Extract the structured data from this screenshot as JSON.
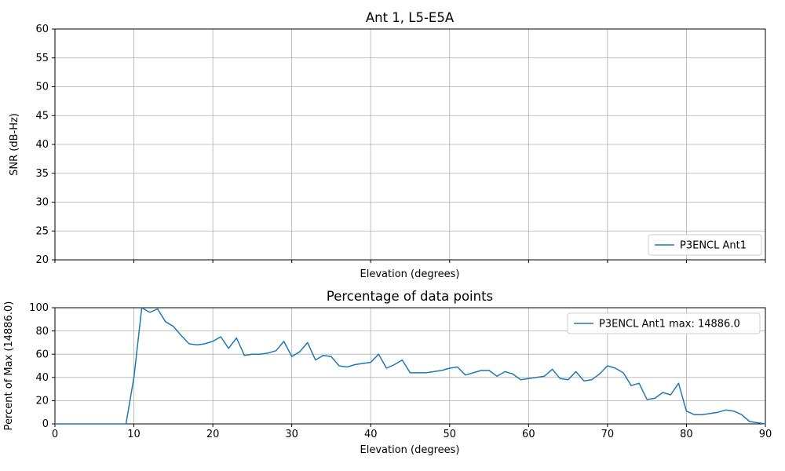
{
  "figure": {
    "background": "#ffffff",
    "line_color": "#1f77b4",
    "grid_color": "#b0b0b0",
    "axis_color": "#000000"
  },
  "chart_data": [
    {
      "type": "line",
      "title": "Ant 1, L5-E5A",
      "xlabel": "Elevation (degrees)",
      "ylabel": "SNR (dB-Hz)",
      "xlim": [
        0,
        90
      ],
      "ylim": [
        20,
        60
      ],
      "xticks": [
        0,
        10,
        20,
        30,
        40,
        50,
        60,
        70,
        80,
        90
      ],
      "show_xtick_labels": false,
      "yticks": [
        20,
        25,
        30,
        35,
        40,
        45,
        50,
        55,
        60
      ],
      "grid": true,
      "legend_label": "P3ENCL Ant1",
      "legend_position": "lower right",
      "series": []
    },
    {
      "type": "line",
      "title": "Percentage of data points",
      "xlabel": "Elevation (degrees)",
      "ylabel": "Percent of Max (14886.0)",
      "max_value": 14886.0,
      "xlim": [
        0,
        90
      ],
      "ylim": [
        0,
        100
      ],
      "xticks": [
        0,
        10,
        20,
        30,
        40,
        50,
        60,
        70,
        80,
        90
      ],
      "show_xtick_labels": true,
      "yticks": [
        0,
        20,
        40,
        60,
        80,
        100
      ],
      "grid": true,
      "legend_label": "P3ENCL Ant1 max: 14886.0",
      "legend_position": "upper right",
      "series": [
        {
          "name": "P3ENCL Ant1",
          "x": [
            0,
            1,
            2,
            3,
            4,
            5,
            6,
            7,
            8,
            9,
            10,
            11,
            12,
            13,
            14,
            15,
            16,
            17,
            18,
            19,
            20,
            21,
            22,
            23,
            24,
            25,
            26,
            27,
            28,
            29,
            30,
            31,
            32,
            33,
            34,
            35,
            36,
            37,
            38,
            39,
            40,
            41,
            42,
            43,
            44,
            45,
            46,
            47,
            48,
            49,
            50,
            51,
            52,
            53,
            54,
            55,
            56,
            57,
            58,
            59,
            60,
            61,
            62,
            63,
            64,
            65,
            66,
            67,
            68,
            69,
            70,
            71,
            72,
            73,
            74,
            75,
            76,
            77,
            78,
            79,
            80,
            81,
            82,
            83,
            84,
            85,
            86,
            87,
            88,
            89,
            90
          ],
          "y": [
            0,
            0,
            0,
            0,
            0,
            0,
            0,
            0,
            0,
            0,
            40,
            100,
            96,
            99,
            88,
            84,
            76,
            69,
            68,
            69,
            71,
            75,
            65,
            74,
            59,
            60,
            60,
            61,
            63,
            71,
            58,
            62,
            70,
            55,
            59,
            58,
            50,
            49,
            51,
            52,
            53,
            60,
            48,
            51,
            55,
            44,
            44,
            44,
            45,
            46,
            48,
            49,
            42,
            44,
            46,
            46,
            41,
            45,
            43,
            38,
            39,
            40,
            41,
            47,
            39,
            38,
            45,
            37,
            38,
            43,
            50,
            48,
            44,
            33,
            35,
            21,
            22,
            27,
            25,
            35,
            11,
            8,
            8,
            9,
            10,
            12,
            11,
            8,
            2,
            1,
            0
          ]
        }
      ]
    }
  ]
}
